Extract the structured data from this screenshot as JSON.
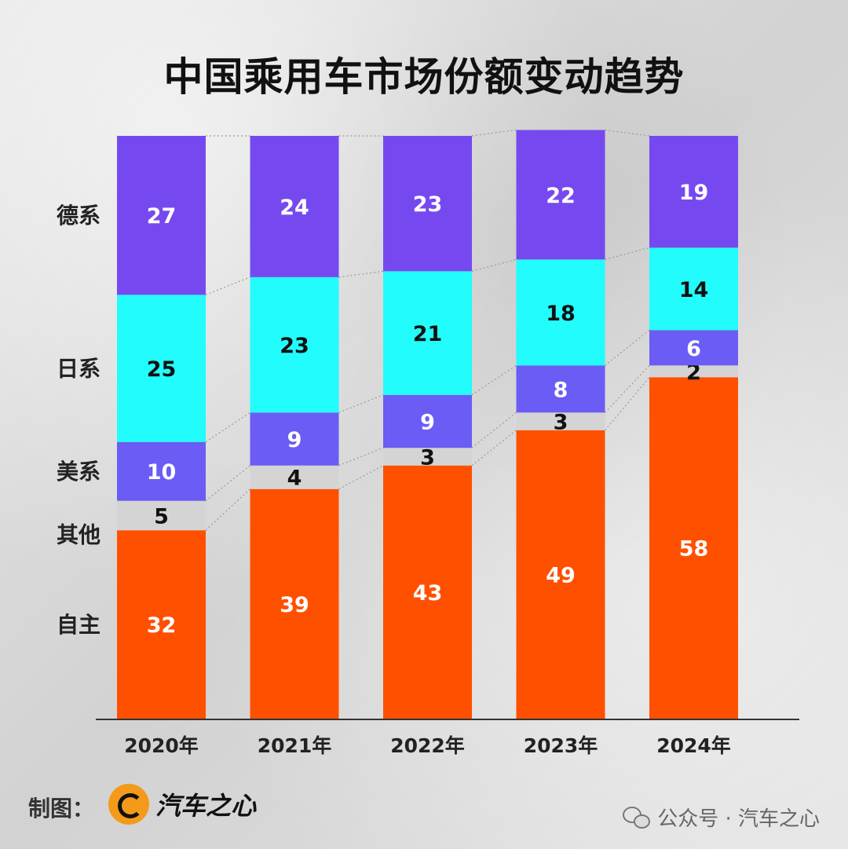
{
  "title": "中国乘用车市场份额变动趋势",
  "footer": {
    "made_by_label": "制图：",
    "brand_name": "汽车之心",
    "wechat_text": "公众号 · 汽车之心"
  },
  "chart_data": {
    "type": "bar",
    "stacked": true,
    "title": "中国乘用车市场份额变动趋势",
    "categories": [
      "2020年",
      "2021年",
      "2022年",
      "2023年",
      "2024年"
    ],
    "series": [
      {
        "name": "自主",
        "values": [
          32,
          39,
          43,
          49,
          58
        ],
        "color": "#ff5000",
        "text_color": "#ffffff"
      },
      {
        "name": "其他",
        "values": [
          5,
          4,
          3,
          3,
          2
        ],
        "color": "#d4d4d4",
        "text_color": "#111111"
      },
      {
        "name": "美系",
        "values": [
          10,
          9,
          9,
          8,
          6
        ],
        "color": "#6a5cf5",
        "text_color": "#ffffff"
      },
      {
        "name": "日系",
        "values": [
          25,
          23,
          21,
          18,
          14
        ],
        "color": "#22fcfc",
        "text_color": "#111111"
      },
      {
        "name": "德系",
        "values": [
          27,
          24,
          23,
          22,
          19
        ],
        "color": "#7649f0",
        "text_color": "#ffffff"
      }
    ],
    "ylim": [
      0,
      99
    ],
    "legend": "left",
    "grid": false
  }
}
